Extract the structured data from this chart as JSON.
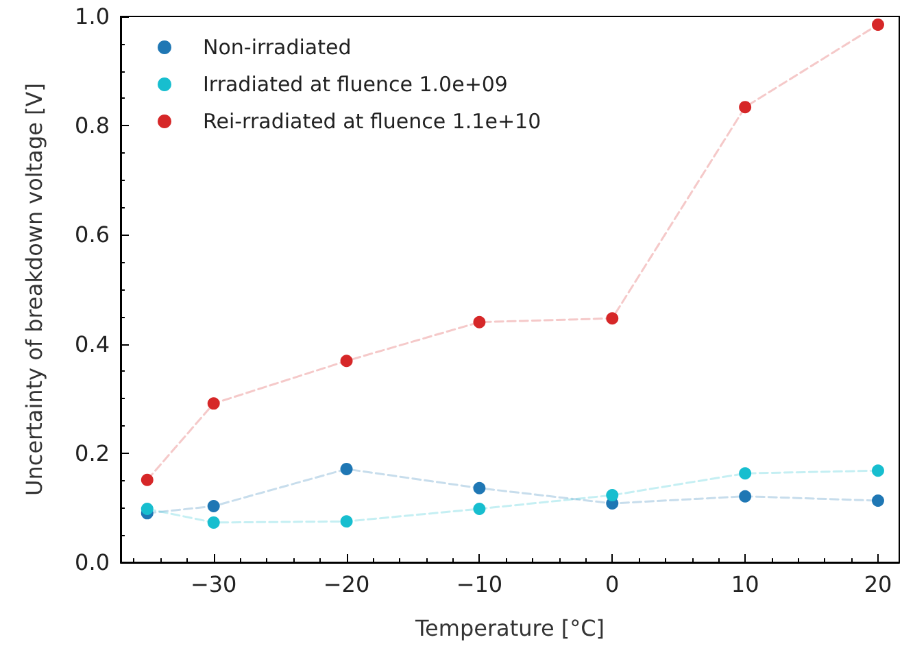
{
  "chart_data": {
    "type": "line",
    "xlabel": "Temperature [°C]",
    "ylabel": "Uncertainty of breakdown voltage [V]",
    "x": [
      -35,
      -30,
      -20,
      -10,
      0,
      10,
      20
    ],
    "xlim": [
      -37,
      21.6
    ],
    "xticks": [
      {
        "value": -30,
        "label": "−30"
      },
      {
        "value": -20,
        "label": "−20"
      },
      {
        "value": -10,
        "label": "−10"
      },
      0,
      10,
      20
    ],
    "ylim": [
      0,
      1
    ],
    "yticks": [
      {
        "value": 0,
        "label": "0.0"
      },
      0.2,
      0.4,
      0.6,
      0.8,
      {
        "value": 1,
        "label": "1.0"
      }
    ],
    "series": [
      {
        "name": "Non-irradiated",
        "color": "#1f77b4",
        "values": [
          0.09,
          0.103,
          0.171,
          0.136,
          0.108,
          0.121,
          0.113
        ]
      },
      {
        "name": "Irradiated at fluence 1.0e+09",
        "color": "#17becf",
        "values": [
          0.098,
          0.073,
          0.075,
          0.098,
          0.123,
          0.163,
          0.168
        ]
      },
      {
        "name": "Rei-rradiated at fluence 1.1e+10",
        "color": "#d62728",
        "values": [
          0.151,
          0.291,
          0.369,
          0.44,
          0.447,
          0.834,
          0.985
        ]
      }
    ],
    "marker": "circle",
    "line_style": "dashed",
    "grid": false,
    "legend": "top left"
  }
}
